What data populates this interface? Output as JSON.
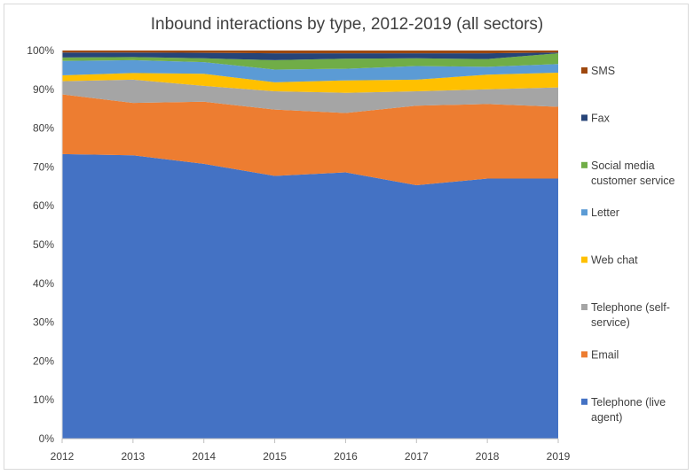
{
  "chart_data": {
    "type": "area",
    "stacked": true,
    "title": "Inbound interactions by type, 2012-2019 (all sectors)",
    "x": [
      "2012",
      "2013",
      "2014",
      "2015",
      "2016",
      "2017",
      "2018",
      "2019"
    ],
    "y_ticks": [
      "0%",
      "10%",
      "20%",
      "30%",
      "40%",
      "50%",
      "60%",
      "70%",
      "80%",
      "90%",
      "100%"
    ],
    "ylim": [
      0,
      100
    ],
    "grid": false,
    "legend_position": "right",
    "series": [
      {
        "name": "Telephone (live agent)",
        "color": "#4472C4",
        "values": [
          73.3,
          73.0,
          70.8,
          67.7,
          68.6,
          65.3,
          67.0,
          67.0
        ]
      },
      {
        "name": "Email",
        "color": "#ED7D31",
        "values": [
          15.4,
          13.5,
          16.0,
          17.1,
          15.3,
          20.5,
          19.2,
          18.5
        ]
      },
      {
        "name": "Telephone (self-service)",
        "color": "#A5A5A5",
        "values": [
          3.4,
          6.0,
          4.1,
          4.7,
          5.2,
          3.7,
          3.8,
          5.0
        ]
      },
      {
        "name": "Web chat",
        "color": "#FFC000",
        "values": [
          1.5,
          1.7,
          3.1,
          2.3,
          3.2,
          3.0,
          3.8,
          3.8
        ]
      },
      {
        "name": "Letter",
        "color": "#5B9BD5",
        "values": [
          3.7,
          3.3,
          3.0,
          3.3,
          3.0,
          3.5,
          2.0,
          2.2
        ]
      },
      {
        "name": "Social media customer service",
        "color": "#70AD47",
        "values": [
          0.9,
          0.8,
          1.0,
          2.4,
          2.6,
          2.0,
          2.0,
          2.8
        ]
      },
      {
        "name": "Fax",
        "color": "#264478",
        "values": [
          1.3,
          1.2,
          1.4,
          1.8,
          1.4,
          1.3,
          1.5,
          0.2
        ]
      },
      {
        "name": "SMS",
        "color": "#9E480E",
        "values": [
          0.5,
          0.5,
          0.6,
          0.7,
          0.7,
          0.7,
          0.7,
          0.5
        ]
      }
    ],
    "legend": [
      {
        "lines": [
          "SMS"
        ],
        "color": "#9E480E"
      },
      {
        "lines": [
          "Fax"
        ],
        "color": "#264478"
      },
      {
        "lines": [
          "Social media",
          "customer service"
        ],
        "color": "#70AD47"
      },
      {
        "lines": [
          "Letter"
        ],
        "color": "#5B9BD5"
      },
      {
        "lines": [
          "Web chat"
        ],
        "color": "#FFC000"
      },
      {
        "lines": [
          "Telephone (self-",
          "service)"
        ],
        "color": "#A5A5A5"
      },
      {
        "lines": [
          "Email"
        ],
        "color": "#ED7D31"
      },
      {
        "lines": [
          "Telephone (live",
          "agent)"
        ],
        "color": "#4472C4"
      }
    ]
  }
}
